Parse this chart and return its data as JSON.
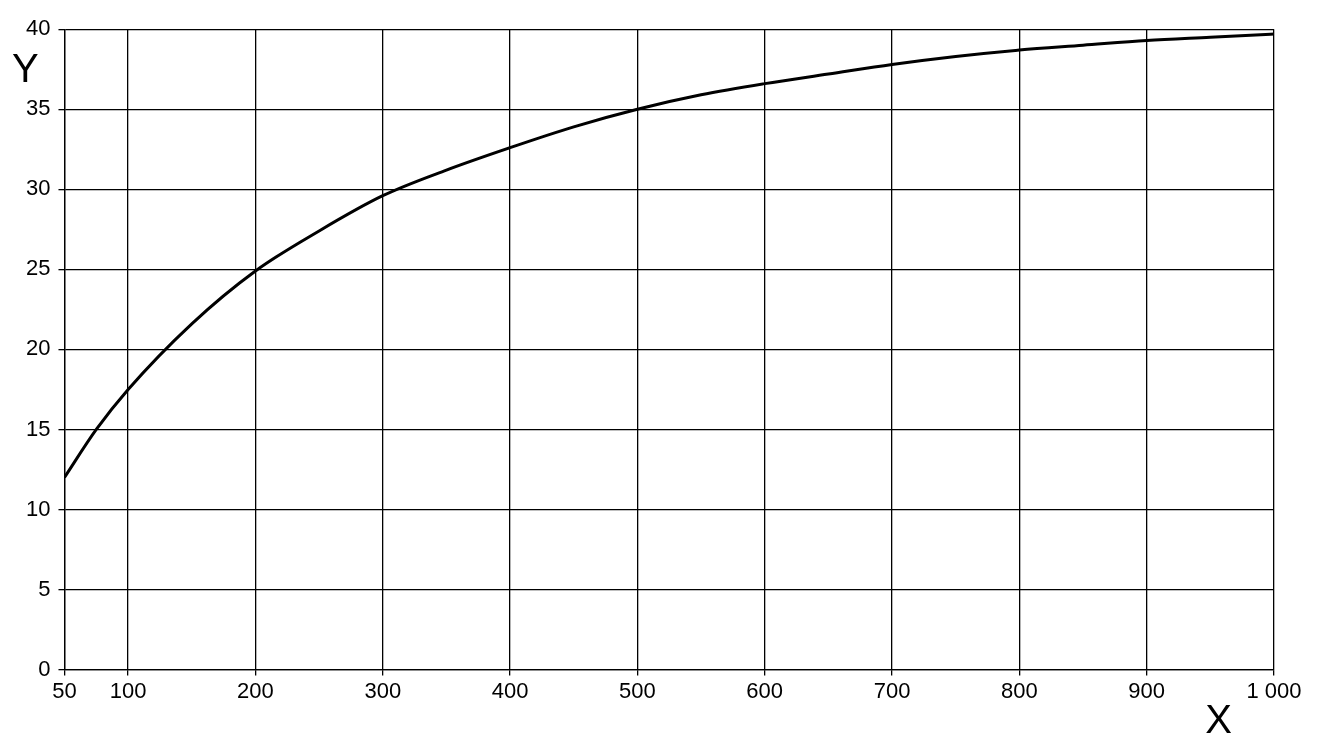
{
  "chart_data": {
    "type": "line",
    "xlabel": "X",
    "ylabel": "Y",
    "x": [
      50,
      75,
      100,
      150,
      200,
      250,
      300,
      350,
      400,
      450,
      500,
      550,
      600,
      650,
      700,
      750,
      800,
      850,
      900,
      950,
      1000
    ],
    "series": [
      {
        "color": "#000000",
        "values": [
          12,
          15,
          17.5,
          21.6,
          24.9,
          27.4,
          29.6,
          31.2,
          32.6,
          33.9,
          35,
          35.9,
          36.6,
          37.2,
          37.8,
          38.3,
          38.7,
          39,
          39.3,
          39.5,
          39.7
        ]
      }
    ],
    "xlim": [
      50,
      1000
    ],
    "xticks": [
      50,
      100,
      200,
      300,
      400,
      500,
      600,
      700,
      800,
      900,
      {
        "value": 1000,
        "label": "1 000"
      }
    ],
    "ylim": [
      0,
      40
    ],
    "yticks": [
      0,
      5,
      10,
      15,
      20,
      25,
      30,
      35,
      40
    ],
    "grid": true,
    "legend": false,
    "marker": "none",
    "line_style": "solid"
  }
}
